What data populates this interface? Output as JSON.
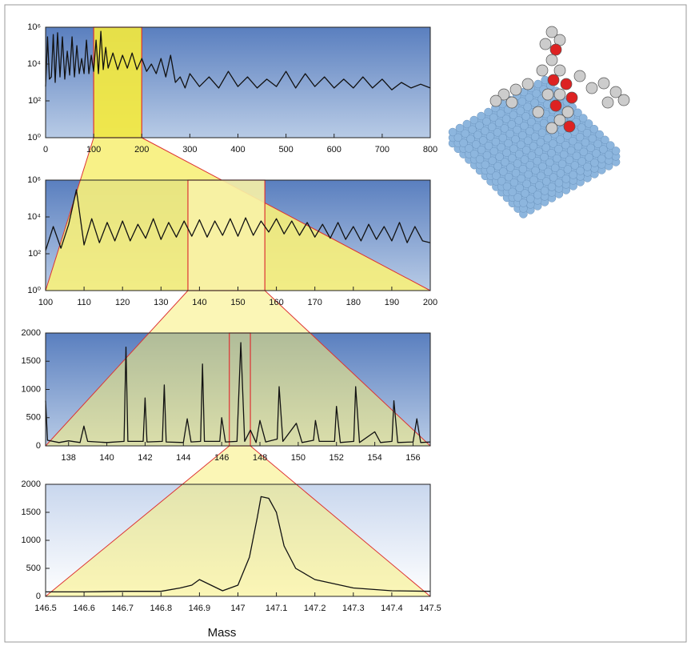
{
  "chart_data": [
    {
      "type": "line",
      "log_y": true,
      "color": "#111111",
      "highlight": [
        100,
        200
      ],
      "highlight_fill": "#f5ea3c",
      "xlim": [
        0,
        800
      ],
      "xticks": [
        0,
        100,
        200,
        300,
        400,
        500,
        600,
        700,
        800
      ],
      "ylim": [
        1,
        1000000
      ],
      "yticks": [
        {
          "value": 1,
          "label": "10⁰"
        },
        {
          "value": 100,
          "label": "10²"
        },
        {
          "value": 10000,
          "label": "10⁴"
        },
        {
          "value": 1000000,
          "label": "10⁶"
        }
      ],
      "x": [
        0,
        4,
        8,
        12,
        16,
        20,
        25,
        30,
        35,
        40,
        45,
        50,
        55,
        60,
        65,
        70,
        75,
        80,
        85,
        90,
        95,
        100,
        105,
        110,
        115,
        120,
        125,
        130,
        140,
        150,
        160,
        170,
        180,
        190,
        200,
        210,
        220,
        230,
        240,
        250,
        260,
        270,
        280,
        290,
        300,
        320,
        340,
        360,
        380,
        400,
        420,
        440,
        460,
        480,
        500,
        520,
        540,
        560,
        580,
        600,
        620,
        640,
        660,
        680,
        700,
        720,
        740,
        760,
        780,
        800
      ],
      "values": [
        600,
        300000,
        1500,
        2000,
        400000,
        1000,
        500000,
        2000,
        300000,
        1500,
        50000,
        2500,
        300000,
        2000,
        100000,
        3000,
        20000,
        3000,
        200000,
        3000,
        30000,
        4000,
        200000,
        3000,
        600000,
        5000,
        80000,
        6000,
        40000,
        5000,
        30000,
        6000,
        40000,
        5000,
        20000,
        4000,
        10000,
        3000,
        20000,
        2000,
        30000,
        1000,
        2000,
        500,
        3000,
        600,
        2000,
        500,
        4000,
        600,
        2000,
        500,
        1500,
        600,
        4000,
        500,
        3000,
        600,
        2000,
        500,
        1500,
        500,
        2000,
        500,
        1500,
        400,
        1000,
        500,
        800,
        500
      ]
    },
    {
      "type": "line",
      "log_y": true,
      "color": "#111111",
      "highlight": [
        137,
        157
      ],
      "highlight_fill": "#f8f2a6",
      "xlim": [
        100,
        200
      ],
      "xticks": [
        100,
        110,
        120,
        130,
        140,
        150,
        160,
        170,
        180,
        190,
        200
      ],
      "ylim": [
        1,
        1000000
      ],
      "yticks": [
        {
          "value": 1,
          "label": "10⁰"
        },
        {
          "value": 100,
          "label": "10²"
        },
        {
          "value": 10000,
          "label": "10⁴"
        },
        {
          "value": 1000000,
          "label": "10⁶"
        }
      ],
      "x": [
        100,
        102,
        104,
        106,
        108,
        110,
        112,
        114,
        116,
        118,
        120,
        122,
        124,
        126,
        128,
        130,
        132,
        134,
        136,
        138,
        140,
        142,
        144,
        146,
        148,
        150,
        152,
        154,
        156,
        158,
        160,
        162,
        164,
        166,
        168,
        170,
        172,
        174,
        176,
        178,
        180,
        182,
        184,
        186,
        188,
        190,
        192,
        194,
        196,
        198,
        200
      ],
      "values": [
        150,
        3000,
        200,
        4000,
        300000,
        300,
        8000,
        400,
        5000,
        500,
        6000,
        500,
        4000,
        700,
        8000,
        600,
        5000,
        800,
        6000,
        900,
        7000,
        800,
        6000,
        1000,
        8000,
        900,
        9000,
        1000,
        6000,
        1500,
        8000,
        1200,
        6000,
        1000,
        5000,
        800,
        4000,
        700,
        5000,
        600,
        3000,
        500,
        4000,
        600,
        3000,
        500,
        5000,
        400,
        3000,
        500,
        400
      ]
    },
    {
      "type": "line",
      "log_y": false,
      "color": "#111111",
      "highlight": [
        146.4,
        147.5
      ],
      "highlight_fill": "none",
      "xlim": [
        136.8,
        156.9
      ],
      "xticks": [
        138,
        140,
        142,
        144,
        146,
        148,
        150,
        152,
        154,
        156
      ],
      "ylim": [
        0,
        2000
      ],
      "yticks": [
        0,
        500,
        1000,
        1500,
        2000
      ],
      "x": [
        136.8,
        136.9,
        137.5,
        138,
        138.6,
        138.8,
        139,
        140,
        140.9,
        141,
        141.1,
        141.9,
        142,
        142.1,
        142.9,
        143,
        143.1,
        144,
        144.2,
        144.4,
        144.9,
        145,
        145.1,
        145.9,
        146,
        146.2,
        146.8,
        147,
        147.2,
        147.5,
        147.8,
        148,
        148.3,
        148.9,
        149,
        149.2,
        149.9,
        150.2,
        150.8,
        150.9,
        151.1,
        151.9,
        152,
        152.2,
        152.9,
        153,
        153.2,
        154,
        154.3,
        154.9,
        155,
        155.2,
        156,
        156.2,
        156.4,
        156.9
      ],
      "values": [
        800,
        100,
        60,
        90,
        60,
        350,
        80,
        60,
        80,
        1750,
        80,
        80,
        850,
        70,
        80,
        1080,
        70,
        60,
        480,
        70,
        80,
        1450,
        80,
        80,
        500,
        70,
        80,
        1830,
        80,
        280,
        60,
        450,
        70,
        120,
        1050,
        80,
        400,
        60,
        100,
        450,
        80,
        80,
        700,
        60,
        80,
        1050,
        60,
        250,
        60,
        80,
        800,
        60,
        70,
        480,
        60,
        70
      ]
    },
    {
      "type": "line",
      "log_y": false,
      "color": "#111111",
      "xlabel": "Mass",
      "xlim": [
        146.5,
        147.5
      ],
      "xticks": [
        146.5,
        146.6,
        146.7,
        146.8,
        146.9,
        147,
        147.1,
        147.2,
        147.3,
        147.4,
        147.5
      ],
      "ylim": [
        0,
        2000
      ],
      "yticks": [
        0,
        500,
        1000,
        1500,
        2000
      ],
      "x": [
        146.5,
        146.6,
        146.7,
        146.8,
        146.85,
        146.88,
        146.9,
        146.93,
        146.96,
        147,
        147.03,
        147.05,
        147.06,
        147.08,
        147.1,
        147.12,
        147.15,
        147.2,
        147.3,
        147.4,
        147.5
      ],
      "values": [
        80,
        80,
        90,
        90,
        150,
        200,
        300,
        200,
        100,
        200,
        700,
        1400,
        1780,
        1750,
        1500,
        900,
        500,
        300,
        150,
        100,
        90
      ]
    }
  ]
}
